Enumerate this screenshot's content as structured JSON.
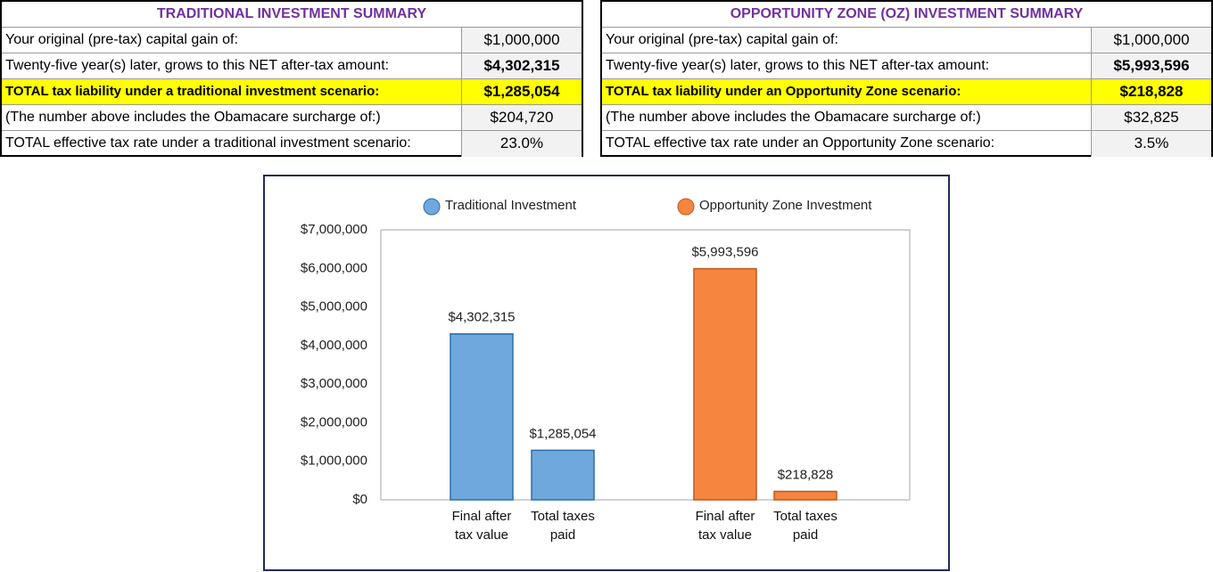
{
  "tables": [
    {
      "title": "TRADITIONAL INVESTMENT SUMMARY",
      "rows": [
        [
          "Your original (pre-tax) capital gain of:",
          "$1,000,000"
        ],
        [
          "Twenty-five year(s) later, grows to this NET after-tax amount:",
          "$4,302,315"
        ],
        [
          "TOTAL tax liability under a traditional investment scenario:",
          "$1,285,054"
        ],
        [
          "(The number above includes the Obamacare surcharge of:)",
          "$204,720"
        ],
        [
          "TOTAL effective tax rate under a traditional investment scenario:",
          "23.0%"
        ]
      ]
    },
    {
      "title": "OPPORTUNITY ZONE (OZ) INVESTMENT SUMMARY",
      "rows": [
        [
          "Your original (pre-tax) capital gain of:",
          "$1,000,000"
        ],
        [
          "Twenty-five year(s) later, grows to this NET after-tax amount:",
          "$5,993,596"
        ],
        [
          "TOTAL tax liability under an Opportunity Zone scenario:",
          "$218,828"
        ],
        [
          "(The number above includes the Obamacare surcharge of:)",
          "$32,825"
        ],
        [
          "TOTAL effective tax rate under an Opportunity Zone scenario:",
          "3.5%"
        ]
      ]
    }
  ],
  "chart_data": {
    "type": "bar",
    "categories": [
      "Final after tax value",
      "Total taxes paid",
      "Final after tax value",
      "Total taxes paid"
    ],
    "series": [
      {
        "name": "Traditional Investment",
        "color": "#6fa8dc",
        "values": [
          4302315,
          1285054,
          null,
          null
        ],
        "value_labels": [
          "$4,302,315",
          "$1,285,054",
          null,
          null
        ]
      },
      {
        "name": "Opportunity Zone Investment",
        "color": "#f5853f",
        "values": [
          null,
          null,
          5993596,
          218828
        ],
        "value_labels": [
          null,
          null,
          "$5,993,596",
          "$218,828"
        ]
      }
    ],
    "ylim": [
      0,
      7000000
    ],
    "yticks": [
      {
        "value": 0,
        "label": "$0"
      },
      {
        "value": 1000000,
        "label": "$1,000,000"
      },
      {
        "value": 2000000,
        "label": "$2,000,000"
      },
      {
        "value": 3000000,
        "label": "$3,000,000"
      },
      {
        "value": 4000000,
        "label": "$4,000,000"
      },
      {
        "value": 5000000,
        "label": "$5,000,000"
      },
      {
        "value": 6000000,
        "label": "$6,000,000"
      },
      {
        "value": 7000000,
        "label": "$7,000,000"
      }
    ],
    "grid": false,
    "legend": "top"
  }
}
